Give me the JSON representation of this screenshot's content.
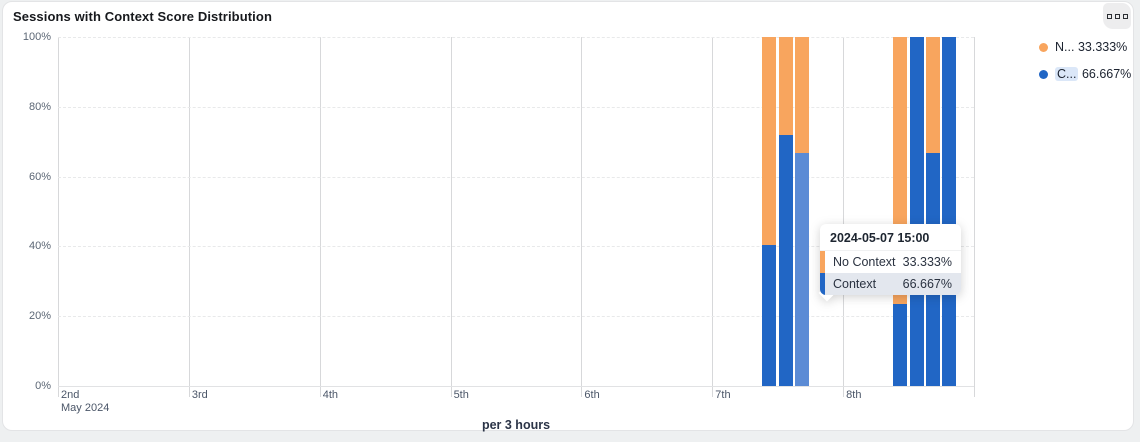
{
  "card": {
    "title": "Sessions with Context Score Distribution"
  },
  "icons": {
    "options": "three-small-squares"
  },
  "legend": {
    "items": [
      {
        "label": "N...",
        "value": "33.333%",
        "color": "#f8a55e",
        "highlighted": false
      },
      {
        "label": "C...",
        "value": "66.667%",
        "color": "#2166c5",
        "highlighted": true
      }
    ]
  },
  "tooltip": {
    "header": "2024-05-07 15:00",
    "rows": [
      {
        "label": "No Context",
        "value": "33.333%",
        "color": "#f8a55e",
        "highlighted": false
      },
      {
        "label": "Context",
        "value": "66.667%",
        "color": "#2166c5",
        "highlighted": true
      }
    ]
  },
  "chart_data": {
    "type": "bar",
    "stacking": "percent",
    "title": "Sessions with Context Score Distribution",
    "xlabel": "per 3 hours",
    "ylabel": "",
    "ylim": [
      0,
      100
    ],
    "y_ticks": [
      "0%",
      "20%",
      "40%",
      "60%",
      "80%",
      "100%"
    ],
    "grid": true,
    "legend_position": "top-right",
    "x_axis": {
      "start_day": "2024-05-02",
      "end_day": "2024-05-09",
      "tick_labels": [
        "2nd",
        "3rd",
        "4th",
        "5th",
        "6th",
        "7th",
        "8th"
      ],
      "sub_label": "May 2024",
      "bucket_hours": 3
    },
    "series": [
      {
        "name": "No Context",
        "color": "#f8a55e"
      },
      {
        "name": "Context",
        "color": "#2166c5"
      }
    ],
    "hover_color": "#5b8bd5",
    "bars": [
      {
        "time": "2024-05-07 09:00",
        "context": 40.5,
        "no_context": 59.5,
        "hovered": false
      },
      {
        "time": "2024-05-07 12:00",
        "context": 72,
        "no_context": 28,
        "hovered": false
      },
      {
        "time": "2024-05-07 15:00",
        "context": 66.667,
        "no_context": 33.333,
        "hovered": true
      },
      {
        "time": "2024-05-08 09:00",
        "context": 23.5,
        "no_context": 76.5,
        "hovered": false
      },
      {
        "time": "2024-05-08 12:00",
        "context": 100,
        "no_context": 0,
        "hovered": false
      },
      {
        "time": "2024-05-08 15:00",
        "context": 66.667,
        "no_context": 33.333,
        "hovered": false
      },
      {
        "time": "2024-05-08 18:00",
        "context": 100,
        "no_context": 0,
        "hovered": false
      }
    ]
  }
}
